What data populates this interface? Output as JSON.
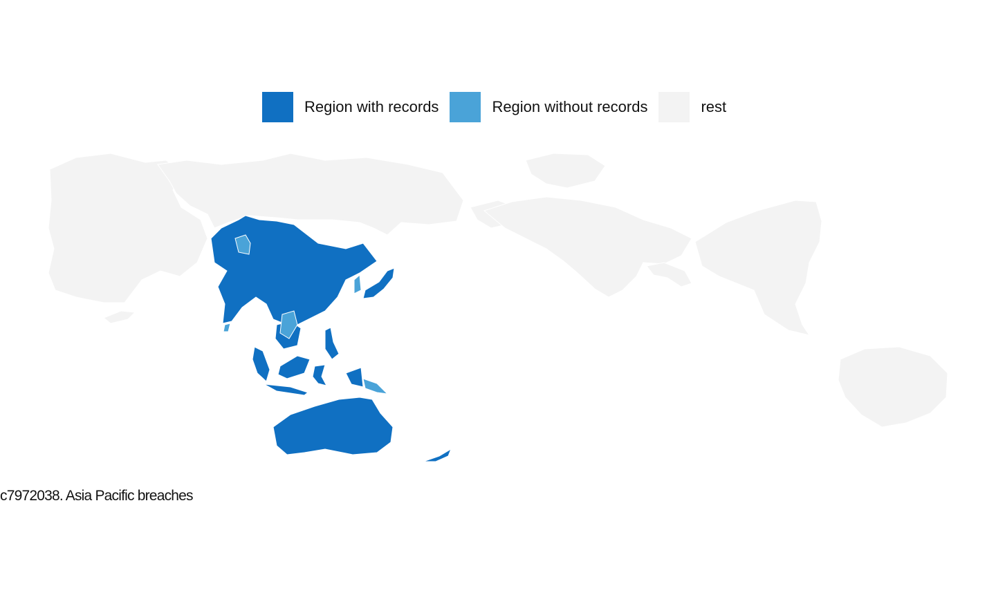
{
  "legend": {
    "items": [
      {
        "label": "Region with records",
        "color": "#1070c2"
      },
      {
        "label": "Region without records",
        "color": "#4aa3d8"
      },
      {
        "label": "rest",
        "color": "#f3f3f3"
      }
    ]
  },
  "caption": "c7972038. Asia Pacific breaches",
  "colors": {
    "border": "#ffffff",
    "background": "#ffffff"
  }
}
